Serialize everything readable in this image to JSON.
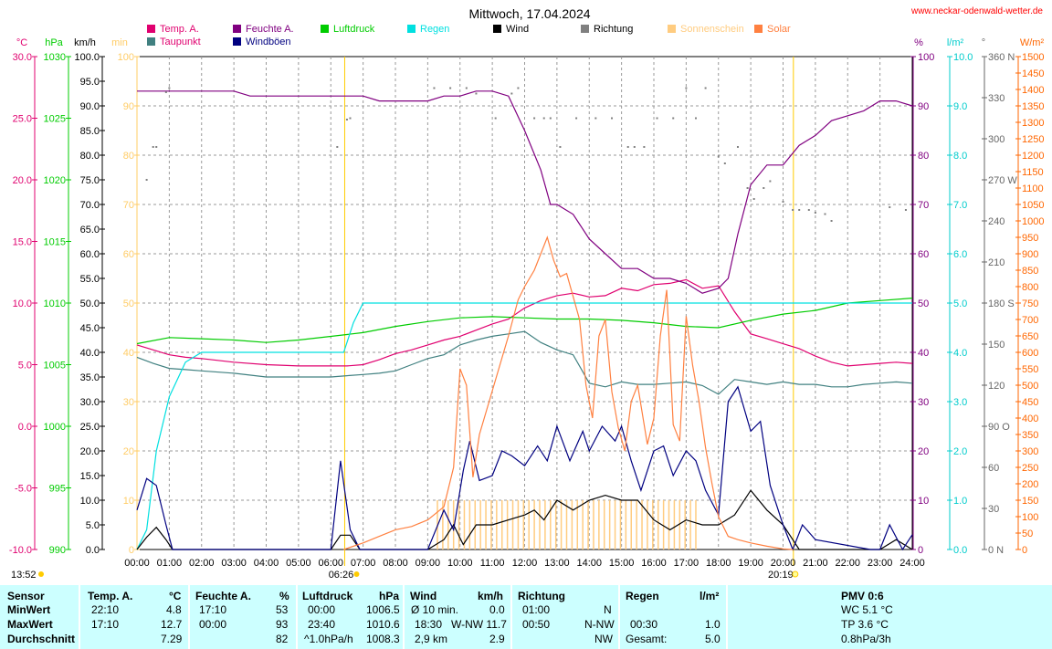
{
  "chart_data": {
    "type": "line",
    "title": "Mittwoch, 17.04.2024",
    "site": "www.neckar-odenwald-wetter.de",
    "x_unit": "hours",
    "xlim": [
      0,
      24
    ],
    "x_ticks": [
      "00:00",
      "01:00",
      "02:00",
      "03:00",
      "04:00",
      "05:00",
      "06:00",
      "07:00",
      "08:00",
      "09:00",
      "10:00",
      "11:00",
      "12:00",
      "13:00",
      "14:00",
      "15:00",
      "16:00",
      "17:00",
      "18:00",
      "19:00",
      "20:00",
      "21:00",
      "22:00",
      "23:00",
      "24:00"
    ],
    "sunrise": "06:26",
    "sunset": "20:19",
    "sunrise_h": 6.43,
    "sunset_h": 20.32,
    "time_now": "13:52",
    "grid": true,
    "axes": {
      "temp": {
        "label": "°C",
        "min": -10,
        "max": 30,
        "step": 5,
        "color": "#e0006f",
        "ticks": [
          "30.0",
          "25.0",
          "20.0",
          "15.0",
          "10.0",
          "5.0",
          "0.0",
          "-5.0",
          "-10.0"
        ]
      },
      "pressure": {
        "label": "hPa",
        "min": 990,
        "max": 1030,
        "step": 5,
        "color": "#00cc00",
        "ticks": [
          "1030",
          "1025",
          "1020",
          "1015",
          "1010",
          "1005",
          "1000",
          "995",
          "990"
        ]
      },
      "wind": {
        "label": "km/h",
        "min": 0,
        "max": 100,
        "step": 5,
        "color": "#000000",
        "ticks": [
          "100.0",
          "95.0",
          "90.0",
          "85.0",
          "80.0",
          "75.0",
          "70.0",
          "65.0",
          "60.0",
          "55.0",
          "50.0",
          "45.0",
          "40.0",
          "35.0",
          "30.0",
          "25.0",
          "20.0",
          "15.0",
          "10.0",
          "5.0",
          "0.0"
        ]
      },
      "sun_min": {
        "label": "min",
        "min": 0,
        "max": 100,
        "step": 10,
        "color": "#ffcc66",
        "ticks": [
          "100",
          "90",
          "80",
          "70",
          "60",
          "50",
          "40",
          "30",
          "20",
          "10",
          "0"
        ]
      },
      "humidity": {
        "label": "%",
        "min": 0,
        "max": 100,
        "step": 10,
        "color": "#800080",
        "ticks": [
          "100",
          "90",
          "80",
          "70",
          "60",
          "50",
          "40",
          "30",
          "20",
          "10",
          "0"
        ]
      },
      "rain": {
        "label": "l/m²",
        "min": 0,
        "max": 10,
        "step": 1,
        "color": "#00cccc",
        "ticks": [
          "10.0",
          "9.0",
          "8.0",
          "7.0",
          "6.0",
          "5.0",
          "4.0",
          "3.0",
          "2.0",
          "1.0",
          "0.0"
        ]
      },
      "direction": {
        "label": "°",
        "min": 0,
        "max": 360,
        "step": 30,
        "color": "#666666",
        "ticks": [
          "360 N",
          "330",
          "300",
          "270 W",
          "240",
          "210",
          "180 S",
          "150",
          "120",
          "90 O",
          "60",
          "30",
          "0 N"
        ]
      },
      "solar": {
        "label": "W/m²",
        "min": 0,
        "max": 1500,
        "step": 50,
        "color": "#ff6600",
        "ticks": [
          "1500",
          "1450",
          "1400",
          "1350",
          "1300",
          "1250",
          "1200",
          "1150",
          "1100",
          "1050",
          "1000",
          "950",
          "900",
          "850",
          "800",
          "750",
          "700",
          "650",
          "600",
          "550",
          "500",
          "450",
          "400",
          "350",
          "300",
          "250",
          "200",
          "150",
          "100",
          "50",
          "0"
        ]
      }
    },
    "legend": [
      {
        "name": "Temp. A.",
        "color": "#e0006f"
      },
      {
        "name": "Feuchte A.",
        "color": "#800080"
      },
      {
        "name": "Luftdruck",
        "color": "#00cc00"
      },
      {
        "name": "Regen",
        "color": "#00e0e0"
      },
      {
        "name": "Wind",
        "color": "#000000"
      },
      {
        "name": "Richtung",
        "color": "#808080"
      },
      {
        "name": "Sonnenschein",
        "color": "#ffcc80"
      },
      {
        "name": "Solar",
        "color": "#ff8040"
      },
      {
        "name": "Taupunkt",
        "color": "#408080"
      },
      {
        "name": "Windböen",
        "color": "#000080"
      }
    ],
    "series": [
      {
        "key": "temp",
        "axis": "temp",
        "color": "#e0006f",
        "x": [
          0,
          0.5,
          1,
          1.5,
          2,
          3,
          4,
          5,
          6,
          6.5,
          7,
          7.5,
          8,
          8.5,
          9,
          9.5,
          10,
          10.5,
          11,
          11.5,
          12,
          12.5,
          13,
          13.5,
          14,
          14.5,
          15,
          15.5,
          16,
          16.5,
          17,
          17.5,
          18,
          18.5,
          19,
          19.5,
          20,
          20.5,
          21,
          21.5,
          22,
          22.5,
          23,
          23.5,
          24
        ],
        "y": [
          6.6,
          6.2,
          5.8,
          5.6,
          5.5,
          5.2,
          5.0,
          4.9,
          4.9,
          4.9,
          5.0,
          5.4,
          5.9,
          6.2,
          6.6,
          7.0,
          7.3,
          7.8,
          8.3,
          8.7,
          9.6,
          10.2,
          10.6,
          10.8,
          10.5,
          10.6,
          11.2,
          11.0,
          11.5,
          11.6,
          11.9,
          11.2,
          11.4,
          9.3,
          7.5,
          7.1,
          6.7,
          6.3,
          5.7,
          5.2,
          4.9,
          5.0,
          5.1,
          5.2,
          5.1
        ]
      },
      {
        "key": "dewpoint",
        "axis": "temp",
        "color": "#408080",
        "x": [
          0,
          0.5,
          1,
          1.5,
          2,
          3,
          4,
          5,
          6,
          6.5,
          7,
          7.5,
          8,
          8.5,
          9,
          9.5,
          10,
          10.5,
          11,
          11.5,
          12,
          12.5,
          13,
          13.5,
          14,
          14.5,
          15,
          15.5,
          16,
          16.5,
          17,
          17.5,
          18,
          18.5,
          19,
          19.5,
          20,
          20.5,
          21,
          21.5,
          22,
          22.5,
          23,
          23.5,
          24
        ],
        "y": [
          5.6,
          5.1,
          4.7,
          4.6,
          4.5,
          4.3,
          4.0,
          4.0,
          4.0,
          4.1,
          4.2,
          4.3,
          4.5,
          5.0,
          5.5,
          5.8,
          6.6,
          7.0,
          7.3,
          7.5,
          7.7,
          6.8,
          6.2,
          5.8,
          3.5,
          3.2,
          3.6,
          3.4,
          3.4,
          3.5,
          3.6,
          3.3,
          2.6,
          3.8,
          3.6,
          3.4,
          3.6,
          3.4,
          3.4,
          3.2,
          3.2,
          3.4,
          3.5,
          3.6,
          3.5
        ]
      },
      {
        "key": "humidity",
        "axis": "humidity",
        "color": "#800080",
        "x": [
          0,
          1,
          2,
          3,
          3.5,
          4,
          5,
          6,
          7,
          7.5,
          8,
          9,
          9.5,
          10,
          10.5,
          11,
          11.5,
          12,
          12.5,
          12.8,
          13,
          13.5,
          14,
          14.5,
          15,
          15.5,
          16,
          16.5,
          17,
          17.5,
          18,
          18.3,
          18.6,
          19,
          19.5,
          20,
          20.5,
          21,
          21.5,
          22,
          22.5,
          23,
          23.5,
          24
        ],
        "y": [
          93,
          93,
          93,
          93,
          92,
          92,
          92,
          92,
          92,
          91,
          91,
          91,
          92,
          92,
          93,
          93,
          92,
          85,
          77,
          70,
          70,
          68,
          63,
          60,
          57,
          57,
          55,
          55,
          54,
          52,
          53,
          55,
          64,
          74,
          78,
          78,
          82,
          84,
          87,
          88,
          89,
          91,
          91,
          90
        ]
      },
      {
        "key": "pressure",
        "axis": "pressure",
        "color": "#00cc00",
        "x": [
          0,
          1,
          2,
          3,
          4,
          5,
          6,
          7,
          8,
          9,
          10,
          11,
          12,
          13,
          14,
          15,
          16,
          17,
          18,
          19,
          20,
          21,
          22,
          23,
          24
        ],
        "y": [
          1006.7,
          1007.2,
          1007.1,
          1007.0,
          1006.8,
          1007.0,
          1007.3,
          1007.6,
          1008.1,
          1008.5,
          1008.8,
          1008.9,
          1008.8,
          1008.7,
          1008.7,
          1008.6,
          1008.4,
          1008.1,
          1008.0,
          1008.6,
          1009.1,
          1009.4,
          1010.0,
          1010.2,
          1010.4
        ]
      },
      {
        "key": "rain",
        "axis": "rain",
        "color": "#00e0e0",
        "x": [
          0,
          0.3,
          0.6,
          1,
          1.5,
          2,
          3,
          4,
          5,
          6,
          6.4,
          6.7,
          7,
          7.5,
          8,
          24
        ],
        "y": [
          0,
          0.4,
          2.0,
          3.1,
          3.8,
          4.0,
          4.0,
          4.0,
          4.0,
          4.0,
          4.0,
          4.6,
          5.0,
          5.0,
          5.0,
          5.0
        ]
      },
      {
        "key": "wind",
        "axis": "wind",
        "color": "#000000",
        "x": [
          0,
          0.3,
          0.6,
          0.9,
          1.1,
          1.5,
          6,
          6.3,
          6.6,
          6.9,
          9,
          9.5,
          9.8,
          10.1,
          10.5,
          11,
          11.5,
          12,
          12.3,
          12.6,
          13,
          13.5,
          14,
          14.5,
          15,
          15.5,
          16,
          16.5,
          17,
          17.5,
          18,
          18.5,
          19,
          19.5,
          20,
          20.2,
          20.5,
          21,
          22,
          22.8,
          23,
          23.5,
          24
        ],
        "y": [
          0,
          2.5,
          4.5,
          2,
          0,
          0,
          0,
          2.9,
          2.9,
          0,
          0,
          2,
          5,
          1,
          5,
          5,
          6,
          7,
          8,
          6,
          10,
          8,
          10,
          11,
          10,
          10,
          6,
          4,
          6,
          5,
          5,
          7,
          12,
          8,
          5,
          3,
          0,
          0,
          0,
          0,
          0,
          2,
          0
        ]
      },
      {
        "key": "gusts",
        "axis": "wind",
        "color": "#000080",
        "x": [
          0,
          0.3,
          0.6,
          0.9,
          1.1,
          1.5,
          6,
          6.3,
          6.6,
          6.9,
          9,
          9.5,
          9.8,
          10.1,
          10.3,
          10.6,
          11,
          11.3,
          11.6,
          12,
          12.4,
          12.7,
          13,
          13.4,
          13.8,
          14,
          14.4,
          14.8,
          15,
          15.3,
          15.6,
          16,
          16.3,
          16.6,
          17,
          17.3,
          17.6,
          18,
          18.3,
          18.6,
          19,
          19.3,
          19.6,
          20,
          20.3,
          20.6,
          21,
          22.7,
          23,
          23.3,
          23.7,
          24
        ],
        "y": [
          8,
          14.4,
          13,
          5,
          0,
          0,
          0,
          18,
          4,
          0,
          0,
          8,
          4,
          16,
          22,
          14,
          15,
          20,
          19,
          17,
          21,
          18,
          25,
          18,
          24,
          20,
          25,
          22,
          25,
          18,
          12,
          20,
          21,
          15,
          20,
          18,
          12,
          7,
          30,
          33,
          24,
          26,
          13,
          5,
          0,
          5,
          2,
          0,
          0,
          5,
          0,
          3
        ]
      },
      {
        "key": "solar",
        "axis": "solar",
        "color": "#ff8040",
        "x": [
          6.4,
          7,
          7.5,
          8,
          8.5,
          9,
          9.5,
          9.8,
          10,
          10.2,
          10.4,
          10.6,
          10.9,
          11.2,
          11.5,
          11.8,
          12,
          12.3,
          12.5,
          12.7,
          12.9,
          13.1,
          13.3,
          13.5,
          13.7,
          13.9,
          14.1,
          14.3,
          14.5,
          14.7,
          14.9,
          15.1,
          15.3,
          15.5,
          15.8,
          16,
          16.2,
          16.4,
          16.6,
          16.8,
          17,
          17.2,
          17.4,
          17.6,
          17.8,
          18,
          18.3,
          18.6,
          19,
          19.5,
          20,
          20.3
        ],
        "y": [
          0,
          20,
          40,
          60,
          70,
          90,
          130,
          250,
          550,
          500,
          220,
          350,
          450,
          550,
          650,
          760,
          800,
          850,
          900,
          950,
          880,
          830,
          840,
          770,
          700,
          500,
          400,
          650,
          700,
          480,
          370,
          300,
          450,
          500,
          320,
          400,
          650,
          790,
          380,
          330,
          710,
          560,
          450,
          310,
          200,
          100,
          40,
          30,
          20,
          10,
          2,
          0
        ]
      },
      {
        "key": "direction",
        "axis": "direction",
        "color": "#808080",
        "style": "dots",
        "x": [
          0.3,
          0.5,
          0.6,
          0.9,
          1.0,
          6.2,
          6.5,
          6.6,
          9.2,
          9.7,
          10.2,
          10.5,
          11.1,
          11.6,
          11.8,
          12.3,
          12.6,
          12.8,
          13.1,
          13.6,
          14.2,
          14.7,
          15.2,
          15.4,
          15.7,
          16.1,
          16.6,
          17.0,
          17.3,
          17.6,
          18.0,
          18.2,
          18.6,
          18.9,
          19.1,
          19.4,
          19.6,
          20.0,
          20.3,
          20.5,
          20.8,
          21.0,
          21.3,
          21.5,
          23.3,
          23.8
        ],
        "y": [
          270,
          294,
          294,
          334,
          337,
          294,
          314,
          315,
          337,
          337,
          337,
          333,
          315,
          333,
          337,
          315,
          315,
          315,
          294,
          315,
          315,
          315,
          294,
          294,
          294,
          315,
          315,
          337,
          315,
          337,
          287,
          282,
          294,
          264,
          256,
          264,
          269,
          254,
          248,
          248,
          248,
          246,
          245,
          240,
          250,
          248
        ]
      },
      {
        "key": "sunshine",
        "axis": "sun_min",
        "color": "#ffcc80",
        "style": "bars",
        "x_start": 9.3,
        "x_end": 17.4,
        "value": 10
      }
    ]
  },
  "table": {
    "headers": [
      "Sensor",
      "Temp. A.",
      "°C",
      "Feuchte A.",
      "%",
      "Luftdruck",
      "hPa",
      "Wind",
      "km/h",
      "Richtung",
      "Regen",
      "l/m²",
      "PMV 0:6"
    ],
    "rows": [
      {
        "label": "MinWert",
        "temp_time": "22:10",
        "temp_val": "4.8",
        "hum_time": "17:10",
        "hum_val": "53",
        "press_time": "00:00",
        "press_val": "1006.5",
        "wind_label": "Ø 10 min.",
        "wind_val": "0.0",
        "dir_time": "01:00",
        "dir_val": "N",
        "rain_time": "",
        "rain_val": "",
        "pmv": "WC 5.1 °C"
      },
      {
        "label": "MaxWert",
        "temp_time": "17:10",
        "temp_val": "12.7",
        "hum_time": "00:00",
        "hum_val": "93",
        "press_time": "23:40",
        "press_val": "1010.6",
        "wind_label": "18:30",
        "wind_val": "W-NW 11.7",
        "dir_time": "00:50",
        "dir_val": "N-NW",
        "rain_time": "00:30",
        "rain_val": "1.0",
        "pmv": "TP 3.6 °C"
      },
      {
        "label": "Durchschnitt",
        "temp_time": "",
        "temp_val": "7.29",
        "hum_time": "",
        "hum_val": "82",
        "press_time": "^1.0hPa/h",
        "press_val": "1008.3",
        "wind_label": "2,9 km",
        "wind_val": "2.9",
        "dir_time": "",
        "dir_val": "NW",
        "rain_time": "Gesamt:",
        "rain_val": "5.0",
        "pmv": "0.8hPa/3h"
      }
    ]
  }
}
